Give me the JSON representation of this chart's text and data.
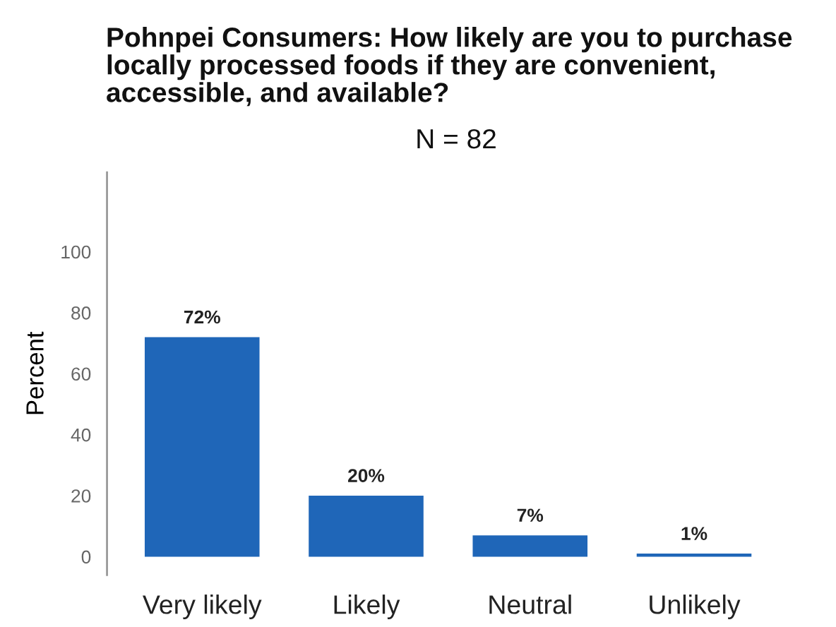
{
  "chart_data": {
    "type": "bar",
    "title": "Pohnpei Consumers: How likely are you to purchase locally processed foods if they are convenient, accessible, and available?",
    "subtitle": "N = 82",
    "ylabel": "Percent",
    "categories": [
      "Very likely",
      "Likely",
      "Neutral",
      "Unlikely"
    ],
    "values": [
      72,
      20,
      7,
      1
    ],
    "color": "#1f66b8",
    "value_labels": [
      "72%",
      "20%",
      "7%",
      "1%"
    ],
    "ylim": [
      -6,
      126
    ],
    "yticks": [
      0,
      20,
      40,
      60,
      80,
      100
    ],
    "grid": false,
    "legend": false
  }
}
